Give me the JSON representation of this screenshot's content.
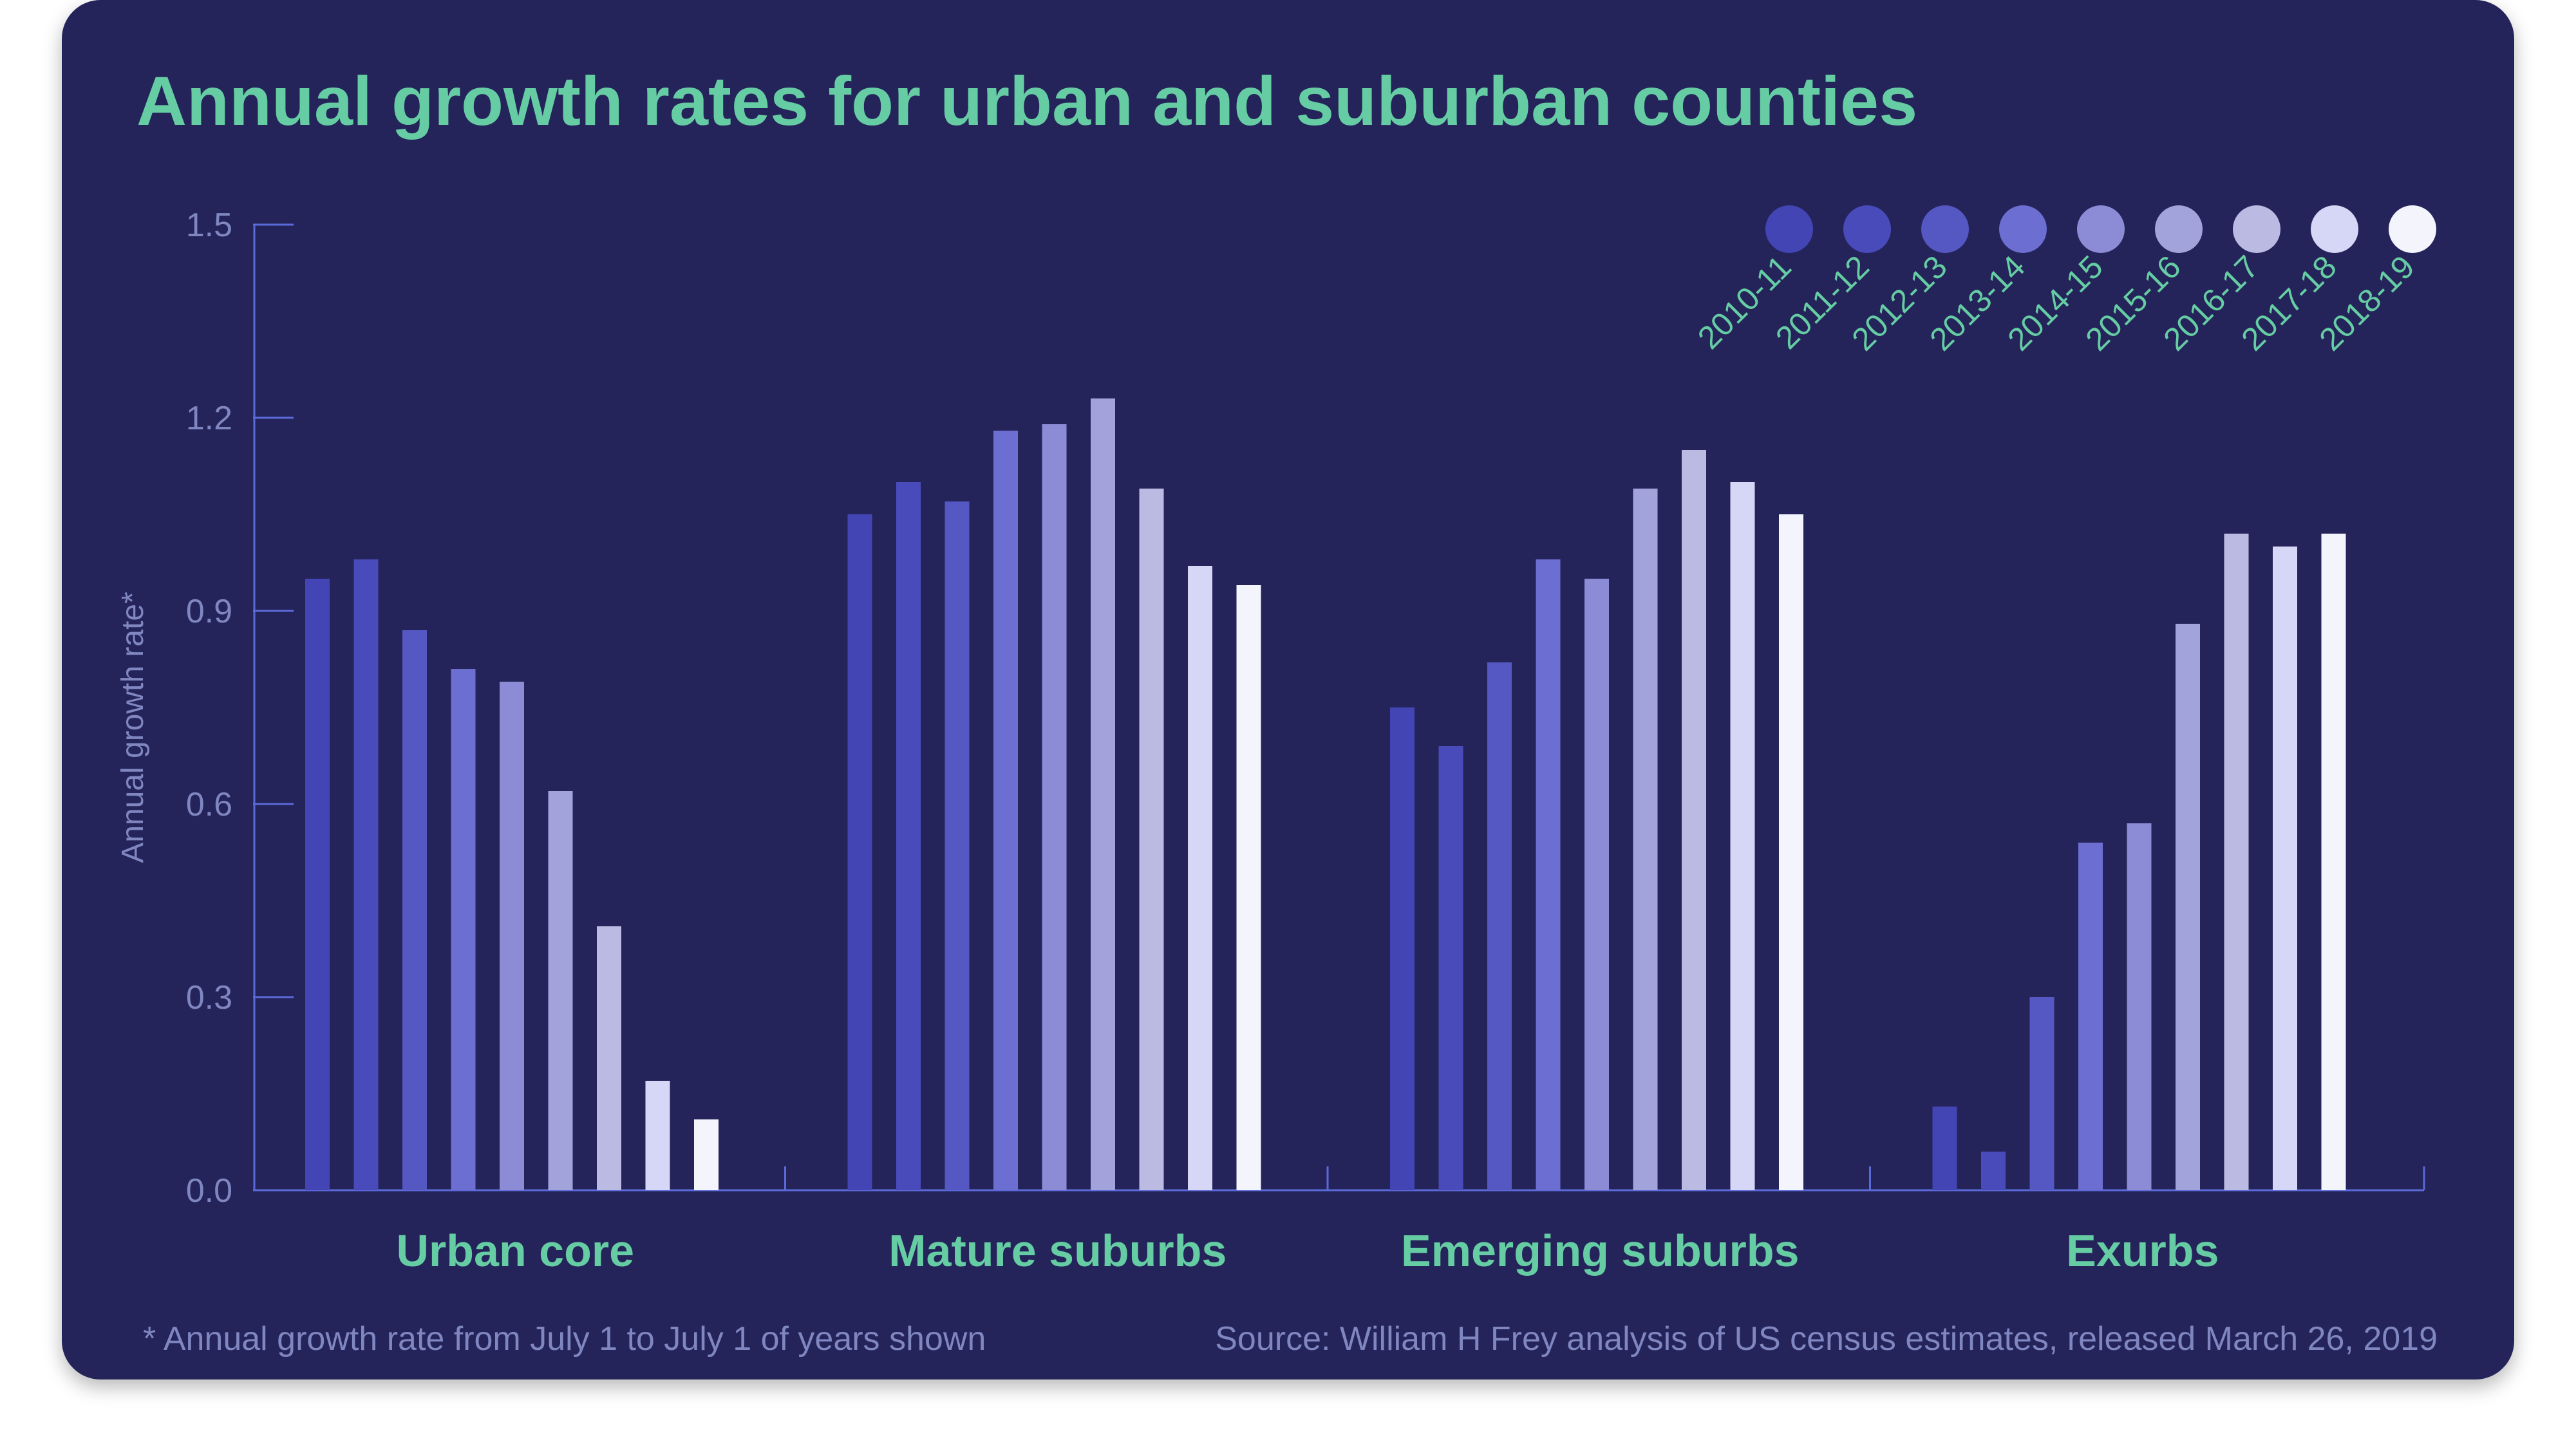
{
  "chart_data": {
    "type": "bar",
    "title": "Annual growth rates for urban and suburban counties",
    "xlabel": "",
    "ylabel": "Annual growth rate*",
    "ylim": [
      0,
      1.5
    ],
    "yticks": [
      "0.0",
      "0.3",
      "0.6",
      "0.9",
      "1.2",
      "1.5"
    ],
    "ytick_values": [
      0,
      0.3,
      0.6,
      0.9,
      1.2,
      1.5
    ],
    "grid": false,
    "legend_position": "top-right",
    "categories": [
      "Urban core",
      "Mature suburbs",
      "Emerging suburbs",
      "Exurbs"
    ],
    "series": [
      {
        "name": "2010-11",
        "color": "#4345b5",
        "values": [
          0.95,
          1.05,
          0.75,
          0.13
        ]
      },
      {
        "name": "2011-12",
        "color": "#4a4bbb",
        "values": [
          0.98,
          1.1,
          0.69,
          0.06
        ]
      },
      {
        "name": "2012-13",
        "color": "#5557c2",
        "values": [
          0.87,
          1.07,
          0.82,
          0.3
        ]
      },
      {
        "name": "2013-14",
        "color": "#6d6ed1",
        "values": [
          0.81,
          1.18,
          0.98,
          0.54
        ]
      },
      {
        "name": "2014-15",
        "color": "#8b8bd6",
        "values": [
          0.79,
          1.19,
          0.95,
          0.57
        ]
      },
      {
        "name": "2015-16",
        "color": "#a3a3dc",
        "values": [
          0.62,
          1.23,
          1.09,
          0.88
        ]
      },
      {
        "name": "2016-17",
        "color": "#bbbae3",
        "values": [
          0.41,
          1.09,
          1.15,
          1.02
        ]
      },
      {
        "name": "2017-18",
        "color": "#d6d6f6",
        "values": [
          0.17,
          0.97,
          1.1,
          1.0
        ]
      },
      {
        "name": "2018-19",
        "color": "#f4f4fd",
        "values": [
          0.11,
          0.94,
          1.05,
          1.02
        ]
      }
    ]
  },
  "footer": {
    "note": "* Annual growth rate from July 1 to July 1 of years shown",
    "source": "Source: William H Frey analysis of US census estimates, released March 26, 2019"
  },
  "colors": {
    "background": "#24245a",
    "accent": "#66cca3",
    "axis": "#5b6ad9",
    "muted_text": "#7f86c0"
  }
}
